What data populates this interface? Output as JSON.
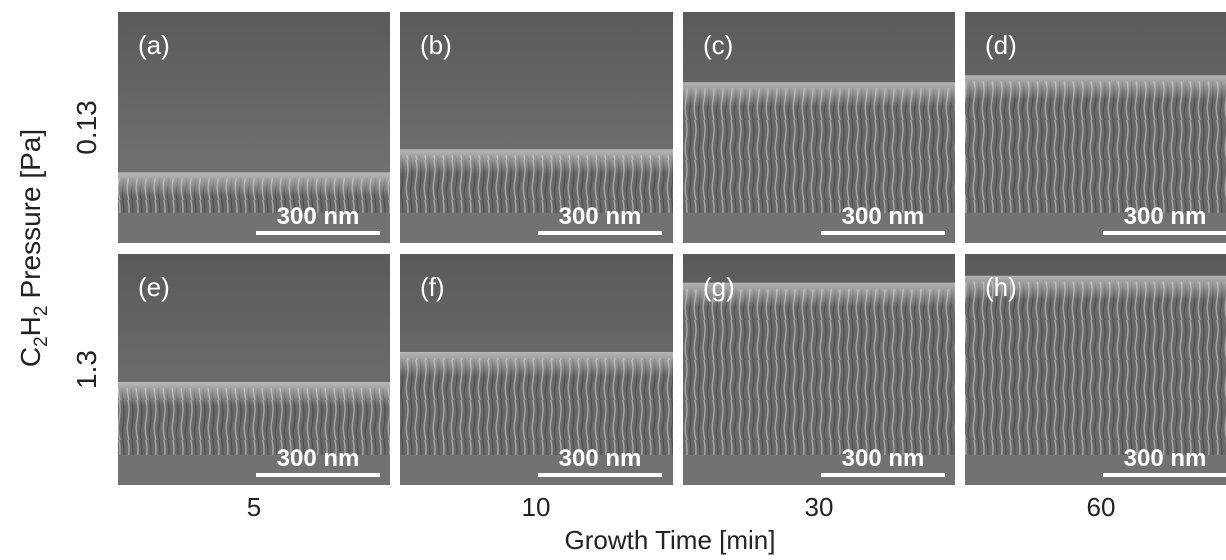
{
  "figure": {
    "y_axis": {
      "formula": {
        "c": "C",
        "c_sub": "2",
        "h": "H",
        "h_sub": "2"
      },
      "label_rest": "Pressure [Pa]"
    },
    "x_axis": {
      "label": "Growth Time [min]",
      "columns": [
        "5",
        "10",
        "30",
        "60"
      ]
    },
    "rows": [
      {
        "value": "0.13",
        "panels": [
          {
            "label": "(a)",
            "scale_bar": "300 nm"
          },
          {
            "label": "(b)",
            "scale_bar": "300 nm"
          },
          {
            "label": "(c)",
            "scale_bar": "300 nm"
          },
          {
            "label": "(d)",
            "scale_bar": "300 nm"
          }
        ]
      },
      {
        "value": "1.3",
        "panels": [
          {
            "label": "(e)",
            "scale_bar": "300 nm"
          },
          {
            "label": "(f)",
            "scale_bar": "300 nm"
          },
          {
            "label": "(g)",
            "scale_bar": "300 nm"
          },
          {
            "label": "(h)",
            "scale_bar": "300 nm"
          }
        ]
      }
    ]
  }
}
